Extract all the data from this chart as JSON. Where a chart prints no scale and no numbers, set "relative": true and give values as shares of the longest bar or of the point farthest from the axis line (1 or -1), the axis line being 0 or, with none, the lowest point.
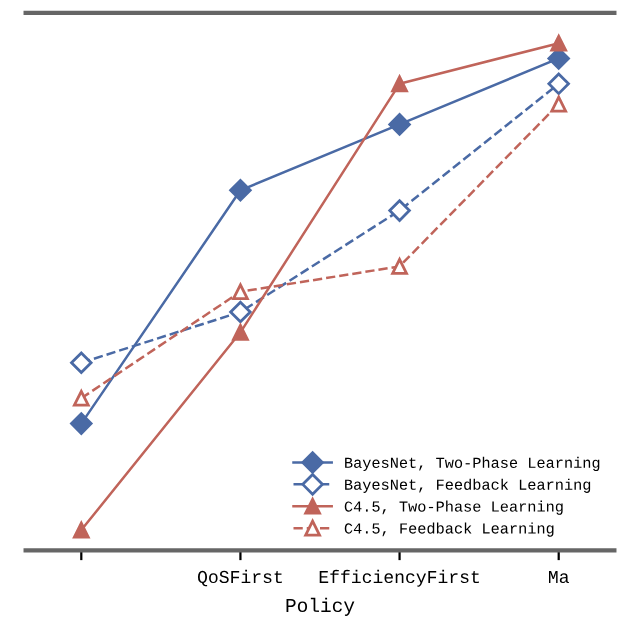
{
  "chart_data": {
    "type": "line",
    "relative": true,
    "xlabel": "Policy",
    "categories": [
      null,
      "QoSFirst",
      "EfficiencyFirst",
      "Ma"
    ],
    "series": [
      {
        "name": "BayesNet, Two-Phase Learning",
        "color": "#4a6aa5",
        "marker": "diamond",
        "line_style": "solid",
        "values": [
          0.25,
          0.71,
          0.84,
          0.97
        ]
      },
      {
        "name": "BayesNet, Feedback Learning",
        "color": "#4a6aa5",
        "marker": "diamond",
        "line_style": "dashed",
        "values": [
          0.37,
          0.47,
          0.67,
          0.92
        ]
      },
      {
        "name": "C4.5, Two-Phase Learning",
        "color": "#c0645a",
        "marker": "triangle",
        "line_style": "solid",
        "values": [
          0.04,
          0.43,
          0.92,
          1.0
        ]
      },
      {
        "name": "C4.5, Feedback Learning",
        "color": "#c0645a",
        "marker": "triangle",
        "line_style": "dashed",
        "values": [
          0.3,
          0.51,
          0.56,
          0.88
        ]
      }
    ],
    "legend": "bottom right",
    "grid": false
  }
}
